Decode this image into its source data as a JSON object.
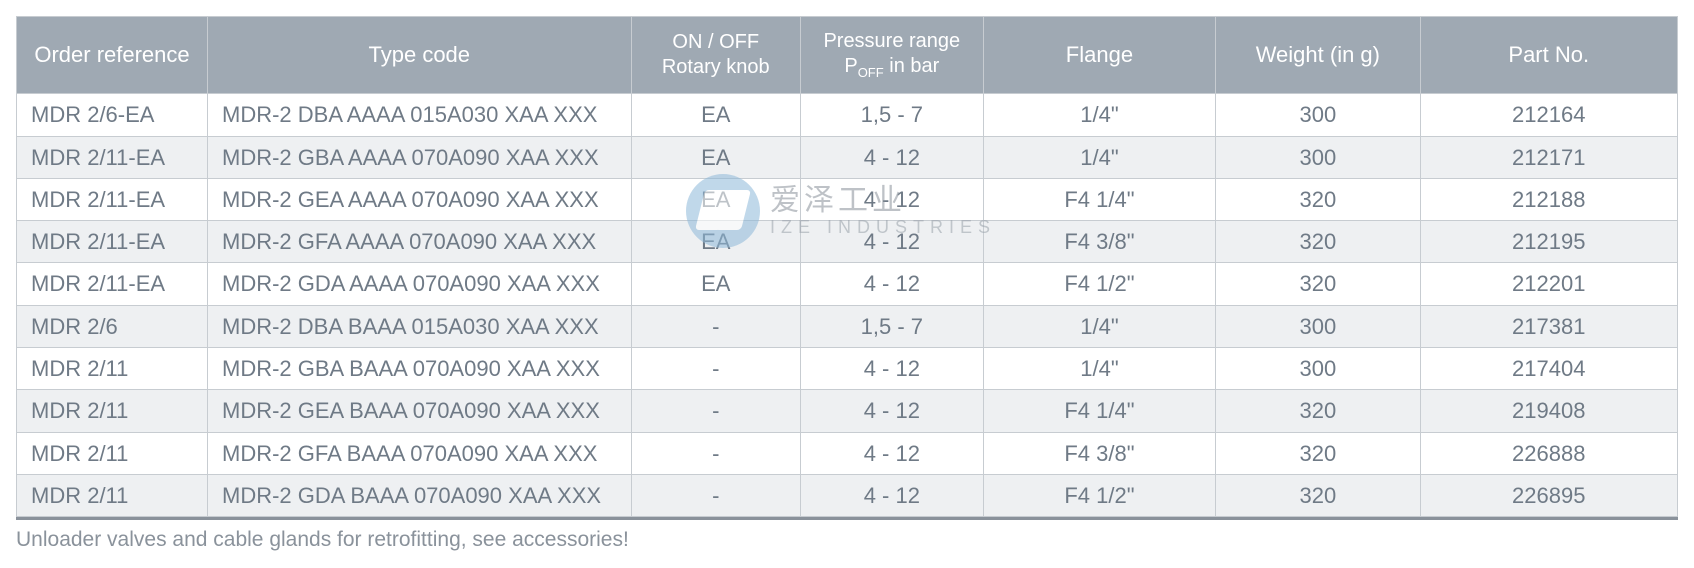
{
  "table": {
    "header_bg": "#9fa9b3",
    "header_fg": "#ffffff",
    "border_color": "#c7ccd1",
    "cell_fg": "#6f7a86",
    "alt_bg": "#eef0f2",
    "row_bg": "#ffffff",
    "font_size_header": 22,
    "font_size_cell": 22,
    "col_widths_pct": [
      11.5,
      25.5,
      10.2,
      11.0,
      14.0,
      12.3,
      15.5
    ],
    "columns": [
      {
        "label": "Order reference"
      },
      {
        "label": "Type code"
      },
      {
        "label_line1": "ON / OFF",
        "label_line2": "Rotary knob"
      },
      {
        "label_line1": "Pressure range",
        "label_line2_pre": "P",
        "label_line2_sub": "OFF",
        "label_line2_post": " in bar"
      },
      {
        "label": "Flange"
      },
      {
        "label": "Weight (in g)"
      },
      {
        "label": "Part No."
      }
    ],
    "rows": [
      {
        "alt": false,
        "cells": [
          "MDR 2/6-EA",
          "MDR-2 DBA AAAA 015A030 XAA XXX",
          "EA",
          "1,5 - 7",
          "1/4\"",
          "300",
          "212164"
        ]
      },
      {
        "alt": true,
        "cells": [
          "MDR 2/11-EA",
          "MDR-2 GBA AAAA 070A090 XAA XXX",
          "EA",
          "4 - 12",
          "1/4\"",
          "300",
          "212171"
        ]
      },
      {
        "alt": false,
        "cells": [
          "MDR 2/11-EA",
          "MDR-2 GEA AAAA 070A090 XAA XXX",
          "EA",
          "4 - 12",
          "F4 1/4\"",
          "320",
          "212188"
        ]
      },
      {
        "alt": true,
        "cells": [
          "MDR 2/11-EA",
          "MDR-2 GFA AAAA 070A090 XAA XXX",
          "EA",
          "4 - 12",
          "F4 3/8\"",
          "320",
          "212195"
        ]
      },
      {
        "alt": false,
        "cells": [
          "MDR 2/11-EA",
          "MDR-2 GDA AAAA 070A090 XAA XXX",
          "EA",
          "4 - 12",
          "F4 1/2\"",
          "320",
          "212201"
        ]
      },
      {
        "alt": true,
        "cells": [
          "MDR 2/6",
          "MDR-2 DBA BAAA 015A030 XAA XXX",
          "-",
          "1,5 - 7",
          "1/4\"",
          "300",
          "217381"
        ]
      },
      {
        "alt": false,
        "cells": [
          "MDR 2/11",
          "MDR-2 GBA BAAA 070A090 XAA XXX",
          "-",
          "4 - 12",
          "1/4\"",
          "300",
          "217404"
        ]
      },
      {
        "alt": true,
        "cells": [
          "MDR 2/11",
          "MDR-2 GEA BAAA 070A090 XAA XXX",
          "-",
          "4 - 12",
          "F4 1/4\"",
          "320",
          "219408"
        ]
      },
      {
        "alt": false,
        "cells": [
          "MDR 2/11",
          "MDR-2 GFA BAAA 070A090 XAA XXX",
          "-",
          "4 - 12",
          "F4 3/8\"",
          "320",
          "226888"
        ]
      },
      {
        "alt": true,
        "cells": [
          "MDR 2/11",
          "MDR-2 GDA BAAA 070A090 XAA XXX",
          "-",
          "4 - 12",
          "F4 1/2\"",
          "320",
          "226895"
        ]
      }
    ]
  },
  "footnote": "Unloader valves and cable glands for retrofitting, see accessories!",
  "watermark": {
    "cn": "爱泽工业",
    "en": "IZE INDUSTRIES",
    "logo_color": "#8eb9d9"
  }
}
